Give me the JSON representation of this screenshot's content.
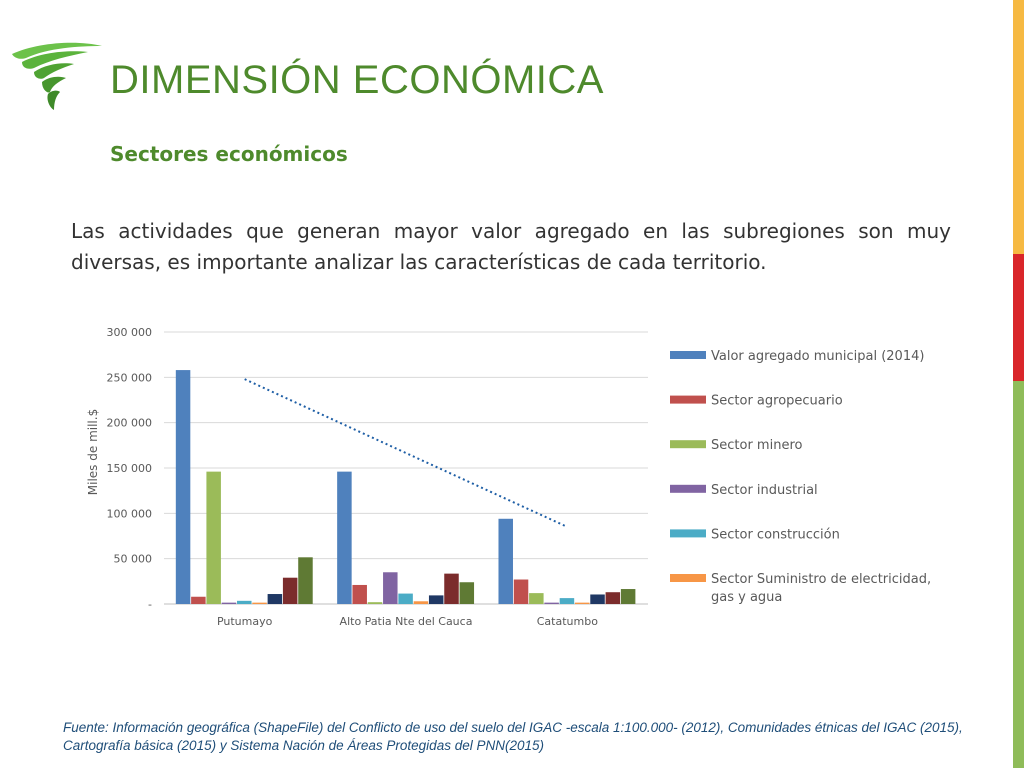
{
  "slide": {
    "title": "DIMENSIÓN ECONÓMICA",
    "subtitle": "Sectores económicos",
    "body": "Las actividades que generan mayor valor agregado en las subregiones son muy diversas, es importante analizar las características de cada territorio.",
    "source": "Fuente: Información geográfica (ShapeFile) del Conflicto de uso del suelo del IGAC -escala 1:100.000- (2012), Comunidades étnicas del IGAC (2015), Cartografía básica (2015) y Sistema Nación de Áreas Protegidas del PNN(2015)"
  },
  "colors": {
    "title": "#4e8a2c",
    "accent_bar": [
      "#f6b942",
      "#d9262a",
      "#8fbc59"
    ]
  },
  "chart_data": {
    "type": "bar",
    "categories": [
      "Putumayo",
      "Alto Patia Nte del Cauca",
      "Catatumbo"
    ],
    "ylabel": "Miles de mill.$",
    "xlabel": "",
    "ylim": [
      0,
      300000
    ],
    "yticks": [
      {
        "value": 0,
        "label": "-"
      },
      {
        "value": 50000,
        "label": "50 000"
      },
      {
        "value": 100000,
        "label": "100 000"
      },
      {
        "value": 150000,
        "label": "150 000"
      },
      {
        "value": 200000,
        "label": "200 000"
      },
      {
        "value": 250000,
        "label": "250 000"
      },
      {
        "value": 300000,
        "label": "300 000"
      }
    ],
    "grid": true,
    "legend_position": "right",
    "series": [
      {
        "name": "Valor agregado municipal (2014)",
        "color": "#4f81bd",
        "values": [
          258000,
          146000,
          94000
        ],
        "in_legend": true
      },
      {
        "name": "Sector agropecuario",
        "color": "#c0504d",
        "values": [
          8000,
          21000,
          27000
        ],
        "in_legend": true
      },
      {
        "name": "Sector minero",
        "color": "#9bbb59",
        "values": [
          146000,
          2000,
          12000
        ],
        "in_legend": true
      },
      {
        "name": "Sector industrial",
        "color": "#8064a2",
        "values": [
          1500,
          35000,
          1500
        ],
        "in_legend": true
      },
      {
        "name": "Sector construcción",
        "color": "#4bacc6",
        "values": [
          3500,
          11500,
          6500
        ],
        "in_legend": true
      },
      {
        "name": "Sector Suministro de electricidad, gas y agua",
        "color": "#f79646",
        "values": [
          1500,
          3000,
          1500
        ],
        "in_legend": true
      },
      {
        "color": "#1f3864",
        "values": [
          11000,
          9500,
          10500
        ],
        "in_legend": false
      },
      {
        "color": "#7b2c2c",
        "values": [
          29000,
          33500,
          13000
        ],
        "in_legend": false
      },
      {
        "color": "#5f7a34",
        "values": [
          51500,
          24000,
          16500
        ],
        "in_legend": false
      }
    ],
    "trendline": {
      "style": "dotted",
      "color": "#1f5fa6",
      "from": {
        "category": "Putumayo",
        "value": 248000
      },
      "to": {
        "category": "Catatumbo",
        "value": 85000
      }
    }
  }
}
